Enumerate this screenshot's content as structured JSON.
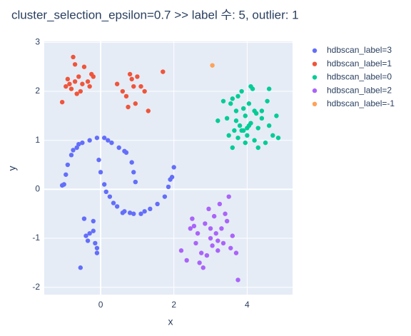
{
  "chart_data": {
    "type": "scatter",
    "title": "cluster_selection_epsilon=0.7 >> label 수: 5, outlier: 1",
    "x_label": "x",
    "y_label": "y",
    "xlim": [
      -1.54,
      5.24
    ],
    "ylim": [
      -2.15,
      3.02
    ],
    "xticks": [
      0,
      2,
      4
    ],
    "yticks": [
      -2,
      -1,
      0,
      1,
      2,
      3
    ],
    "grid": true,
    "legend": "right",
    "series": [
      {
        "name": "hdbscan_label=3",
        "color": "#636efa",
        "x": [
          -1.0,
          -0.95,
          -0.9,
          -0.8,
          -0.65,
          -0.5,
          -0.3,
          -0.1,
          0.1,
          0.3,
          0.5,
          0.7,
          0.85,
          0.9,
          0.95,
          -1.05,
          -0.75,
          -0.6,
          0.2,
          0.65,
          -0.05,
          0.0,
          0.1,
          0.25,
          0.45,
          0.65,
          0.9,
          1.1,
          1.35,
          1.55,
          1.75,
          1.85,
          1.95,
          2.0,
          1.9,
          0.6,
          0.8,
          0.15,
          0.35,
          1.2,
          -0.45,
          -0.3,
          -0.2,
          -0.15,
          -0.35,
          -0.55,
          -0.1,
          -0.2,
          -0.4,
          -0.1
        ],
        "y": [
          0.1,
          0.3,
          0.5,
          0.7,
          0.85,
          0.95,
          1.0,
          1.05,
          1.05,
          0.95,
          0.85,
          0.75,
          0.55,
          0.35,
          0.15,
          0.08,
          0.8,
          0.92,
          1.0,
          0.78,
          0.6,
          0.35,
          0.1,
          -0.15,
          -0.35,
          -0.45,
          -0.5,
          -0.5,
          -0.4,
          -0.3,
          -0.15,
          0.05,
          0.25,
          0.45,
          0.2,
          -0.48,
          -0.48,
          -0.05,
          -0.28,
          -0.45,
          -0.6,
          -0.9,
          -0.85,
          -1.1,
          -1.05,
          -1.6,
          -1.3,
          -0.65,
          -0.95,
          -1.2
        ]
      },
      {
        "name": "hdbscan_label=1",
        "color": "#EF553B",
        "x": [
          -1.05,
          -0.95,
          -0.9,
          -0.85,
          -0.8,
          -0.75,
          -0.7,
          -0.6,
          -0.55,
          -0.5,
          -0.45,
          -0.35,
          -0.3,
          -0.25,
          -0.2,
          0.45,
          0.6,
          0.7,
          0.8,
          0.9,
          0.95,
          1.0,
          1.1,
          1.2,
          1.3,
          0.75,
          0.85,
          1.7,
          -0.7,
          -0.65
        ],
        "y": [
          1.78,
          2.1,
          2.25,
          2.15,
          2.05,
          2.7,
          2.2,
          2.3,
          2.0,
          2.15,
          2.5,
          2.2,
          2.1,
          2.35,
          2.3,
          2.15,
          2.0,
          1.9,
          2.35,
          2.1,
          1.75,
          2.3,
          2.1,
          2.0,
          1.6,
          1.68,
          2.25,
          2.4,
          2.55,
          1.95
        ]
      },
      {
        "name": "hdbscan_label=0",
        "color": "#00cc96",
        "x": [
          3.2,
          3.35,
          3.45,
          3.5,
          3.6,
          3.65,
          3.7,
          3.75,
          3.8,
          3.85,
          3.9,
          3.95,
          4.0,
          4.05,
          4.1,
          4.15,
          4.2,
          4.25,
          4.3,
          4.4,
          4.5,
          4.55,
          4.6,
          4.7,
          4.8,
          4.85,
          3.55,
          3.75,
          3.9,
          4.0,
          4.1,
          4.3,
          4.4,
          3.85,
          4.05,
          3.6,
          3.95,
          4.2,
          4.6,
          3.7
        ],
        "y": [
          1.4,
          1.8,
          1.45,
          1.1,
          0.85,
          1.2,
          1.6,
          1.9,
          1.3,
          2.0,
          1.2,
          1.5,
          1.1,
          1.75,
          1.35,
          2.05,
          1.0,
          1.55,
          1.25,
          1.6,
          0.95,
          1.8,
          1.3,
          1.1,
          1.5,
          1.05,
          1.75,
          1.05,
          1.65,
          1.25,
          2.1,
          0.85,
          1.45,
          1.2,
          1.3,
          1.85,
          0.95,
          1.6,
          2.05,
          1.4
        ],
        "dummy": null
      },
      {
        "name": "hdbscan_label=2",
        "color": "#ab63fa",
        "x": [
          2.2,
          2.35,
          2.45,
          2.5,
          2.6,
          2.65,
          2.75,
          2.8,
          2.85,
          2.9,
          2.95,
          3.0,
          3.05,
          3.1,
          3.15,
          3.2,
          3.25,
          3.3,
          3.35,
          3.45,
          3.5,
          3.55,
          3.6,
          3.7,
          3.75,
          2.55,
          2.7,
          3.0,
          3.2,
          3.4
        ],
        "y": [
          -1.25,
          -1.45,
          -0.8,
          -0.6,
          -1.1,
          -0.9,
          -1.3,
          -1.6,
          -0.7,
          -1.35,
          -0.4,
          -1.0,
          -1.15,
          -0.55,
          -0.9,
          -1.25,
          -0.3,
          -0.8,
          -1.1,
          -0.65,
          -0.15,
          -1.2,
          -0.95,
          -1.3,
          -1.85,
          -0.75,
          -1.5,
          -0.8,
          -1.05,
          -0.5
        ]
      },
      {
        "name": "hdbscan_label=-1",
        "color": "#FFA15A",
        "x": [
          3.05
        ],
        "y": [
          2.53
        ]
      }
    ]
  }
}
